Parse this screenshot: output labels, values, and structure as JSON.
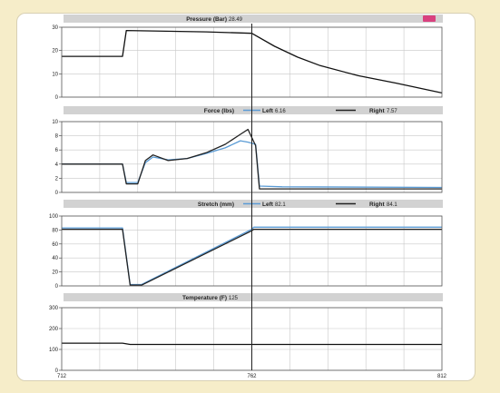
{
  "chart_data": [
    {
      "type": "line",
      "title": "Pressure (Bar)",
      "header_value": "28.49",
      "badge_color": "#d9417f",
      "ylim": [
        0,
        30
      ],
      "yticks": [
        "0",
        "10",
        "20",
        "30"
      ],
      "series": [
        {
          "color": "#111111",
          "points": [
            [
              712,
              17.5
            ],
            [
              728,
              17.5
            ],
            [
              729,
              28.6
            ],
            [
              750,
              28.0
            ],
            [
              762,
              27.4
            ],
            [
              768,
              21.8
            ],
            [
              774,
              17.2
            ],
            [
              780,
              13.5
            ],
            [
              790,
              9.2
            ],
            [
              800,
              6.0
            ],
            [
              812,
              1.8
            ]
          ]
        }
      ]
    },
    {
      "type": "line",
      "title": "Force (lbs)",
      "ylim": [
        0,
        10
      ],
      "yticks": [
        "0",
        "2",
        "4",
        "6",
        "8",
        "10"
      ],
      "legend": [
        {
          "name": "Left",
          "value": "6.16",
          "color": "#5a9bd5"
        },
        {
          "name": "Right",
          "value": "7.57",
          "color": "#222222"
        }
      ],
      "series": [
        {
          "name": "Left",
          "color": "#5a9bd5",
          "points": [
            [
              712,
              4.0
            ],
            [
              728,
              4.0
            ],
            [
              729,
              1.4
            ],
            [
              732,
              1.4
            ],
            [
              734,
              4.2
            ],
            [
              736,
              5.0
            ],
            [
              740,
              4.6
            ],
            [
              745,
              4.8
            ],
            [
              750,
              5.5
            ],
            [
              755,
              6.3
            ],
            [
              759,
              7.3
            ],
            [
              761,
              7.1
            ],
            [
              763,
              6.8
            ],
            [
              764,
              0.9
            ],
            [
              770,
              0.8
            ],
            [
              812,
              0.7
            ]
          ]
        },
        {
          "name": "Right",
          "color": "#222222",
          "points": [
            [
              712,
              4.0
            ],
            [
              728,
              4.0
            ],
            [
              729,
              1.2
            ],
            [
              732,
              1.2
            ],
            [
              734,
              4.5
            ],
            [
              736,
              5.3
            ],
            [
              740,
              4.5
            ],
            [
              745,
              4.8
            ],
            [
              750,
              5.6
            ],
            [
              755,
              6.8
            ],
            [
              759,
              8.2
            ],
            [
              761,
              8.9
            ],
            [
              763,
              6.6
            ],
            [
              764,
              0.5
            ],
            [
              770,
              0.5
            ],
            [
              812,
              0.5
            ]
          ]
        }
      ]
    },
    {
      "type": "line",
      "title": "Stretch (mm)",
      "ylim": [
        0,
        100
      ],
      "yticks": [
        "0",
        "20",
        "40",
        "60",
        "80",
        "100"
      ],
      "legend": [
        {
          "name": "Left",
          "value": "82.1",
          "color": "#5a9bd5"
        },
        {
          "name": "Right",
          "value": "84.1",
          "color": "#222222"
        }
      ],
      "series": [
        {
          "name": "Left",
          "color": "#5a9bd5",
          "points": [
            [
              712,
              83
            ],
            [
              728,
              83
            ],
            [
              730,
              2
            ],
            [
              733,
              2
            ],
            [
              762,
              81
            ],
            [
              762.5,
              84
            ],
            [
              812,
              84
            ]
          ]
        },
        {
          "name": "Right",
          "color": "#222222",
          "points": [
            [
              712,
              81
            ],
            [
              728,
              81
            ],
            [
              730,
              1
            ],
            [
              733,
              1
            ],
            [
              762,
              79
            ],
            [
              762.5,
              81
            ],
            [
              812,
              81
            ]
          ]
        }
      ]
    },
    {
      "type": "line",
      "title": "Temperature (F)",
      "header_value": "125",
      "ylim": [
        0,
        300
      ],
      "yticks": [
        "0",
        "100",
        "200",
        "300"
      ],
      "xlim": [
        712,
        812
      ],
      "xticks": [
        "712",
        "762",
        "812"
      ],
      "series": [
        {
          "color": "#111111",
          "points": [
            [
              712,
              130
            ],
            [
              728,
              130
            ],
            [
              730,
              124
            ],
            [
              812,
              124
            ]
          ]
        }
      ]
    }
  ]
}
